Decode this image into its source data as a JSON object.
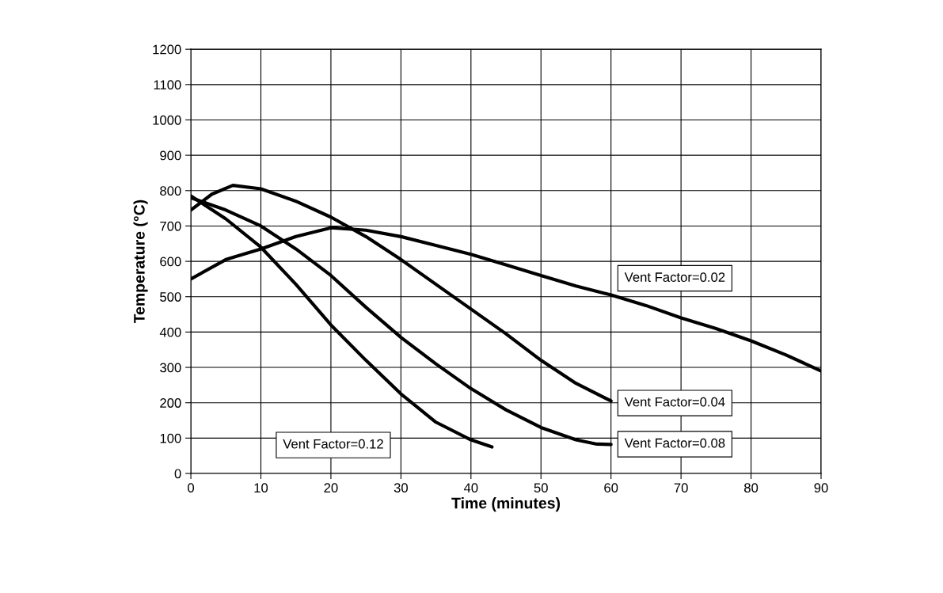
{
  "chart_data": {
    "type": "line",
    "xlabel": "Time (minutes)",
    "ylabel": "Temperature (°C)",
    "xlim": [
      0,
      90
    ],
    "xticks": [
      0,
      10,
      20,
      30,
      40,
      50,
      60,
      70,
      80,
      90
    ],
    "ylim": [
      0,
      1200
    ],
    "yticks": [
      0,
      100,
      200,
      300,
      400,
      500,
      600,
      700,
      800,
      900,
      1000,
      1100,
      1200
    ],
    "grid": true,
    "legend": false,
    "marker": "none",
    "line_style": "solid",
    "series": [
      {
        "name": "Vent Factor=0.02",
        "color": "#000000",
        "x": [
          0,
          5,
          10,
          15,
          20,
          25,
          30,
          35,
          40,
          45,
          50,
          55,
          60,
          65,
          70,
          75,
          80,
          85,
          90
        ],
        "values": [
          550,
          605,
          635,
          670,
          695,
          688,
          670,
          645,
          620,
          590,
          560,
          530,
          505,
          475,
          440,
          410,
          375,
          335,
          290
        ]
      },
      {
        "name": "Vent Factor=0.04",
        "color": "#000000",
        "x": [
          0,
          3,
          6,
          10,
          15,
          20,
          25,
          30,
          35,
          40,
          45,
          50,
          55,
          60
        ],
        "values": [
          745,
          790,
          815,
          805,
          770,
          725,
          670,
          605,
          535,
          465,
          395,
          320,
          255,
          205
        ]
      },
      {
        "name": "Vent Factor=0.08",
        "color": "#000000",
        "x": [
          0,
          5,
          10,
          15,
          20,
          25,
          30,
          35,
          40,
          45,
          50,
          55,
          58,
          60
        ],
        "values": [
          780,
          745,
          700,
          635,
          560,
          470,
          385,
          310,
          240,
          180,
          130,
          95,
          83,
          82
        ]
      },
      {
        "name": "Vent Factor=0.12",
        "color": "#000000",
        "x": [
          0,
          5,
          10,
          15,
          20,
          25,
          30,
          35,
          40,
          43
        ],
        "values": [
          785,
          720,
          640,
          535,
          420,
          320,
          225,
          145,
          95,
          75
        ]
      }
    ]
  }
}
